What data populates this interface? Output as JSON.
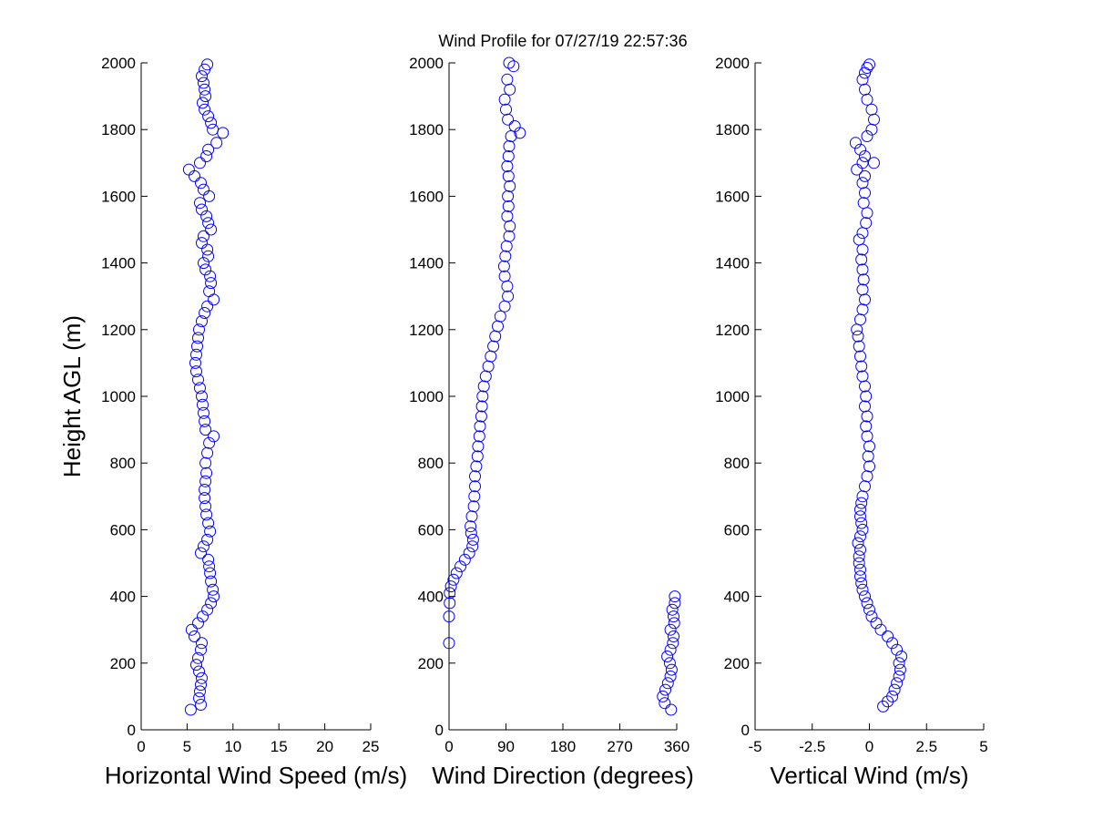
{
  "figure": {
    "title": "Wind Profile for  07/27/19 22:57:36",
    "shared_ylabel": "Height AGL (m)",
    "marker_color": "#0000ff"
  },
  "chart_data": [
    {
      "type": "scatter",
      "xlabel": "Horizontal Wind Speed (m/s)",
      "ylabel": "Height AGL (m)",
      "xlim": [
        0,
        25
      ],
      "ylim": [
        0,
        2000
      ],
      "xticks": [
        0,
        5,
        10,
        15,
        20,
        25
      ],
      "xtick_labels": [
        "0",
        "5",
        "10",
        "15",
        "20",
        "25"
      ],
      "yticks": [
        0,
        200,
        400,
        600,
        800,
        1000,
        1200,
        1400,
        1600,
        1800,
        2000
      ],
      "ytick_labels": [
        "0",
        "200",
        "400",
        "600",
        "800",
        "1000",
        "1200",
        "1400",
        "1600",
        "1800",
        "2000"
      ],
      "marker": "open-circle",
      "color": "#0000ff",
      "points": [
        [
          5.4,
          60
        ],
        [
          6.5,
          75
        ],
        [
          6.3,
          95
        ],
        [
          6.4,
          115
        ],
        [
          6.5,
          135
        ],
        [
          6.6,
          155
        ],
        [
          6.3,
          175
        ],
        [
          6.0,
          195
        ],
        [
          6.2,
          215
        ],
        [
          6.5,
          240
        ],
        [
          6.6,
          260
        ],
        [
          5.8,
          280
        ],
        [
          5.5,
          300
        ],
        [
          6.2,
          320
        ],
        [
          6.7,
          340
        ],
        [
          7.2,
          360
        ],
        [
          7.6,
          380
        ],
        [
          7.9,
          400
        ],
        [
          7.8,
          420
        ],
        [
          7.6,
          445
        ],
        [
          7.5,
          470
        ],
        [
          7.4,
          490
        ],
        [
          7.3,
          510
        ],
        [
          6.5,
          530
        ],
        [
          6.8,
          550
        ],
        [
          7.2,
          570
        ],
        [
          7.5,
          595
        ],
        [
          7.3,
          620
        ],
        [
          7.1,
          645
        ],
        [
          7.0,
          670
        ],
        [
          6.9,
          695
        ],
        [
          6.9,
          720
        ],
        [
          7.0,
          745
        ],
        [
          7.1,
          770
        ],
        [
          7.0,
          800
        ],
        [
          7.2,
          830
        ],
        [
          7.4,
          860
        ],
        [
          7.9,
          880
        ],
        [
          7.0,
          900
        ],
        [
          6.9,
          925
        ],
        [
          6.8,
          950
        ],
        [
          6.7,
          975
        ],
        [
          6.6,
          1000
        ],
        [
          6.4,
          1025
        ],
        [
          6.2,
          1050
        ],
        [
          6.0,
          1075
        ],
        [
          5.9,
          1100
        ],
        [
          6.0,
          1125
        ],
        [
          6.1,
          1150
        ],
        [
          6.2,
          1175
        ],
        [
          6.3,
          1200
        ],
        [
          6.6,
          1225
        ],
        [
          6.9,
          1250
        ],
        [
          7.2,
          1270
        ],
        [
          7.9,
          1290
        ],
        [
          7.4,
          1315
        ],
        [
          7.6,
          1340
        ],
        [
          7.5,
          1360
        ],
        [
          7.0,
          1380
        ],
        [
          6.8,
          1400
        ],
        [
          7.3,
          1420
        ],
        [
          7.2,
          1440
        ],
        [
          6.6,
          1460
        ],
        [
          6.8,
          1480
        ],
        [
          7.6,
          1500
        ],
        [
          7.3,
          1520
        ],
        [
          7.1,
          1540
        ],
        [
          6.6,
          1560
        ],
        [
          6.4,
          1580
        ],
        [
          7.4,
          1600
        ],
        [
          6.8,
          1620
        ],
        [
          6.5,
          1640
        ],
        [
          5.8,
          1660
        ],
        [
          5.2,
          1680
        ],
        [
          6.4,
          1700
        ],
        [
          7.1,
          1720
        ],
        [
          7.3,
          1740
        ],
        [
          8.2,
          1760
        ],
        [
          8.9,
          1790
        ],
        [
          7.8,
          1800
        ],
        [
          7.6,
          1820
        ],
        [
          7.3,
          1840
        ],
        [
          6.9,
          1860
        ],
        [
          6.7,
          1880
        ],
        [
          7.0,
          1900
        ],
        [
          6.9,
          1920
        ],
        [
          6.8,
          1940
        ],
        [
          6.6,
          1960
        ],
        [
          6.9,
          1980
        ],
        [
          7.2,
          1995
        ]
      ]
    },
    {
      "type": "scatter",
      "xlabel": "Wind Direction (degrees)",
      "ylabel": "",
      "xlim": [
        0,
        360
      ],
      "ylim": [
        0,
        2000
      ],
      "xticks": [
        0,
        90,
        180,
        270,
        360
      ],
      "xtick_labels": [
        "0",
        "90",
        "180",
        "270",
        "360"
      ],
      "yticks": [
        0,
        200,
        400,
        600,
        800,
        1000,
        1200,
        1400,
        1600,
        1800,
        2000
      ],
      "ytick_labels": [
        "0",
        "200",
        "400",
        "600",
        "800",
        "1000",
        "1200",
        "1400",
        "1600",
        "1800",
        "2000"
      ],
      "marker": "open-circle",
      "color": "#0000ff",
      "points": [
        [
          0,
          260
        ],
        [
          0,
          340
        ],
        [
          1,
          380
        ],
        [
          1,
          410
        ],
        [
          3,
          430
        ],
        [
          7,
          450
        ],
        [
          12,
          470
        ],
        [
          18,
          490
        ],
        [
          25,
          510
        ],
        [
          32,
          530
        ],
        [
          37,
          550
        ],
        [
          38,
          570
        ],
        [
          35,
          590
        ],
        [
          34,
          610
        ],
        [
          36,
          640
        ],
        [
          39,
          670
        ],
        [
          40,
          700
        ],
        [
          41,
          730
        ],
        [
          41,
          760
        ],
        [
          43,
          790
        ],
        [
          45,
          820
        ],
        [
          46,
          850
        ],
        [
          48,
          880
        ],
        [
          49,
          910
        ],
        [
          51,
          940
        ],
        [
          52,
          970
        ],
        [
          53,
          1000
        ],
        [
          55,
          1030
        ],
        [
          58,
          1060
        ],
        [
          62,
          1090
        ],
        [
          66,
          1120
        ],
        [
          70,
          1150
        ],
        [
          73,
          1180
        ],
        [
          77,
          1210
        ],
        [
          81,
          1240
        ],
        [
          88,
          1270
        ],
        [
          93,
          1300
        ],
        [
          92,
          1330
        ],
        [
          88,
          1360
        ],
        [
          87,
          1390
        ],
        [
          89,
          1420
        ],
        [
          91,
          1450
        ],
        [
          95,
          1480
        ],
        [
          96,
          1510
        ],
        [
          92,
          1540
        ],
        [
          94,
          1570
        ],
        [
          93,
          1600
        ],
        [
          96,
          1630
        ],
        [
          94,
          1660
        ],
        [
          92,
          1690
        ],
        [
          94,
          1720
        ],
        [
          95,
          1750
        ],
        [
          98,
          1780
        ],
        [
          112,
          1790
        ],
        [
          104,
          1810
        ],
        [
          93,
          1830
        ],
        [
          90,
          1860
        ],
        [
          88,
          1890
        ],
        [
          96,
          1920
        ],
        [
          92,
          1950
        ],
        [
          102,
          1990
        ],
        [
          95,
          2000
        ],
        [
          351,
          60
        ],
        [
          341,
          80
        ],
        [
          338,
          100
        ],
        [
          342,
          120
        ],
        [
          346,
          140
        ],
        [
          350,
          160
        ],
        [
          352,
          180
        ],
        [
          349,
          200
        ],
        [
          345,
          220
        ],
        [
          350,
          240
        ],
        [
          354,
          260
        ],
        [
          355,
          280
        ],
        [
          350,
          300
        ],
        [
          356,
          320
        ],
        [
          355,
          340
        ],
        [
          353,
          360
        ],
        [
          357,
          380
        ],
        [
          357,
          400
        ]
      ]
    },
    {
      "type": "scatter",
      "xlabel": "Vertical Wind (m/s)",
      "ylabel": "",
      "xlim": [
        -5,
        5
      ],
      "ylim": [
        0,
        2000
      ],
      "xticks": [
        -5,
        -2.5,
        0,
        2.5,
        5
      ],
      "xtick_labels": [
        "-5",
        "-2.5",
        "0",
        "2.5",
        "5"
      ],
      "yticks": [
        0,
        200,
        400,
        600,
        800,
        1000,
        1200,
        1400,
        1600,
        1800,
        2000
      ],
      "ytick_labels": [
        "0",
        "200",
        "400",
        "600",
        "800",
        "1000",
        "1200",
        "1400",
        "1600",
        "1800",
        "2000"
      ],
      "marker": "open-circle",
      "color": "#0000ff",
      "points": [
        [
          0.6,
          70
        ],
        [
          0.8,
          85
        ],
        [
          1.0,
          100
        ],
        [
          1.1,
          120
        ],
        [
          1.2,
          140
        ],
        [
          1.3,
          160
        ],
        [
          1.35,
          180
        ],
        [
          1.3,
          200
        ],
        [
          1.4,
          220
        ],
        [
          1.2,
          240
        ],
        [
          1.0,
          260
        ],
        [
          0.8,
          280
        ],
        [
          0.5,
          300
        ],
        [
          0.3,
          320
        ],
        [
          0.1,
          340
        ],
        [
          0.0,
          360
        ],
        [
          -0.1,
          380
        ],
        [
          -0.2,
          400
        ],
        [
          -0.3,
          420
        ],
        [
          -0.35,
          440
        ],
        [
          -0.4,
          460
        ],
        [
          -0.4,
          480
        ],
        [
          -0.45,
          500
        ],
        [
          -0.45,
          520
        ],
        [
          -0.4,
          540
        ],
        [
          -0.5,
          560
        ],
        [
          -0.4,
          580
        ],
        [
          -0.3,
          600
        ],
        [
          -0.35,
          620
        ],
        [
          -0.4,
          640
        ],
        [
          -0.4,
          660
        ],
        [
          -0.35,
          680
        ],
        [
          -0.3,
          700
        ],
        [
          -0.2,
          730
        ],
        [
          -0.1,
          760
        ],
        [
          0.0,
          790
        ],
        [
          -0.05,
          820
        ],
        [
          0.0,
          850
        ],
        [
          -0.1,
          880
        ],
        [
          -0.15,
          910
        ],
        [
          -0.1,
          940
        ],
        [
          -0.2,
          970
        ],
        [
          -0.15,
          1000
        ],
        [
          -0.2,
          1030
        ],
        [
          -0.3,
          1060
        ],
        [
          -0.35,
          1090
        ],
        [
          -0.4,
          1120
        ],
        [
          -0.45,
          1150
        ],
        [
          -0.5,
          1180
        ],
        [
          -0.55,
          1200
        ],
        [
          -0.4,
          1230
        ],
        [
          -0.3,
          1260
        ],
        [
          -0.2,
          1290
        ],
        [
          -0.3,
          1320
        ],
        [
          -0.25,
          1350
        ],
        [
          -0.3,
          1380
        ],
        [
          -0.35,
          1410
        ],
        [
          -0.3,
          1440
        ],
        [
          -0.45,
          1470
        ],
        [
          -0.3,
          1490
        ],
        [
          -0.15,
          1520
        ],
        [
          -0.1,
          1550
        ],
        [
          -0.25,
          1580
        ],
        [
          -0.2,
          1610
        ],
        [
          -0.3,
          1640
        ],
        [
          -0.2,
          1660
        ],
        [
          -0.55,
          1680
        ],
        [
          -0.3,
          1700
        ],
        [
          0.2,
          1700
        ],
        [
          -0.2,
          1720
        ],
        [
          -0.4,
          1740
        ],
        [
          -0.6,
          1760
        ],
        [
          -0.1,
          1780
        ],
        [
          0.1,
          1800
        ],
        [
          0.2,
          1830
        ],
        [
          0.1,
          1860
        ],
        [
          -0.1,
          1890
        ],
        [
          -0.2,
          1920
        ],
        [
          -0.3,
          1950
        ],
        [
          -0.2,
          1970
        ],
        [
          -0.1,
          1985
        ],
        [
          0.0,
          1995
        ]
      ]
    }
  ]
}
